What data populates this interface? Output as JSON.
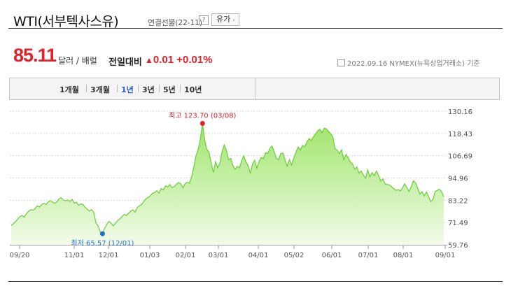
{
  "header": {
    "title": "WTI(서부텍사스유)",
    "subtitle": "연결선물(22-11)",
    "help_label": "?",
    "oil_button": "유가",
    "oil_button_arrow": "›"
  },
  "quote": {
    "price": "85.11",
    "unit": "달러 / 배럴",
    "change_label": "전일대비",
    "change_arrow": "▲",
    "change_value": "0.01",
    "change_percent": "+0.01%",
    "as_of": "2022.09.16  NYMEX(뉴욕상업거래소) 기준"
  },
  "periods": {
    "items": [
      "1개월",
      "3개월",
      "1년",
      "3년",
      "5년",
      "10년"
    ],
    "active": "1년"
  },
  "chart_data": {
    "type": "area",
    "x_labels": [
      "09/20",
      "11/01",
      "12/01",
      "01/03",
      "02/01",
      "03/01",
      "04/01",
      "05/02",
      "06/01",
      "07/01",
      "08/01",
      "09/01"
    ],
    "y_ticks": [
      "130.16",
      "118.43",
      "106.69",
      "94.96",
      "83.22",
      "71.49",
      "59.76"
    ],
    "ylim": [
      59.76,
      130.16
    ],
    "high_label": "최고 123.70 (03/08)",
    "low_label": "최저 65.57 (12/01)",
    "high": 123.7,
    "low": 65.57,
    "colors": {
      "line": "#6ccb3c",
      "fill_top": "#9fe56a",
      "fill_bottom": "#f2fbe9",
      "high_marker": "#e0222c",
      "low_marker": "#1e6ed6"
    },
    "values": [
      70.0,
      70.8,
      72.0,
      73.2,
      74.6,
      75.2,
      74.3,
      76.1,
      77.4,
      78.2,
      78.0,
      78.8,
      80.3,
      79.6,
      80.9,
      81.6,
      81.0,
      82.3,
      83.0,
      82.4,
      81.6,
      82.3,
      83.9,
      84.6,
      83.4,
      82.9,
      83.4,
      82.5,
      83.7,
      81.6,
      82.2,
      80.6,
      81.3,
      81.1,
      79.4,
      78.6,
      77.5,
      78.3,
      76.8,
      71.2,
      69.7,
      66.5,
      65.57,
      68.5,
      70.4,
      72.1,
      71.0,
      69.8,
      71.2,
      72.6,
      73.4,
      74.6,
      75.8,
      75.2,
      76.4,
      77.5,
      78.2,
      76.9,
      79.4,
      80.3,
      81.0,
      82.6,
      83.9,
      84.7,
      85.6,
      86.9,
      87.4,
      88.2,
      87.0,
      89.4,
      88.6,
      90.8,
      90.2,
      91.5,
      89.9,
      90.4,
      91.6,
      92.6,
      91.9,
      89.8,
      91.9,
      92.8,
      92.2,
      95.6,
      100.9,
      106.6,
      110.0,
      115.5,
      123.7,
      115.0,
      110.0,
      108.6,
      103.0,
      97.8,
      103.5,
      100.4,
      102.9,
      108.8,
      112.4,
      109.6,
      104.5,
      105.3,
      101.5,
      99.5,
      101.1,
      100.3,
      104.1,
      106.6,
      103.4,
      101.4,
      97.3,
      102.3,
      104.3,
      100.2,
      103.5,
      105.8,
      105.1,
      108.3,
      107.9,
      110.6,
      111.8,
      108.6,
      105.2,
      104.6,
      107.8,
      108.1,
      104.4,
      101.2,
      104.6,
      101.8,
      105.4,
      108.6,
      111.2,
      109.6,
      112.1,
      111.4,
      113.9,
      115.7,
      114.8,
      116.6,
      118.2,
      119.8,
      120.6,
      118.9,
      121.2,
      120.8,
      119.5,
      118.2,
      116.5,
      110.3,
      109.6,
      107.8,
      109.8,
      104.5,
      107.4,
      105.6,
      103.4,
      102.4,
      99.6,
      100.8,
      97.5,
      98.7,
      96.5,
      94.8,
      99.2,
      95.5,
      97.8,
      96.2,
      98.6,
      96.4,
      93.3,
      94.5,
      91.8,
      91.5,
      91.3,
      90.2,
      89.3,
      88.4,
      88.8,
      88.1,
      89.7,
      91.9,
      89.8,
      87.9,
      90.2,
      93.5,
      92.5,
      89.6,
      86.4,
      87.8,
      85.4,
      87.6,
      85.1,
      82.4,
      83.6,
      87.9,
      88.4,
      89.0,
      87.7,
      85.11
    ]
  }
}
